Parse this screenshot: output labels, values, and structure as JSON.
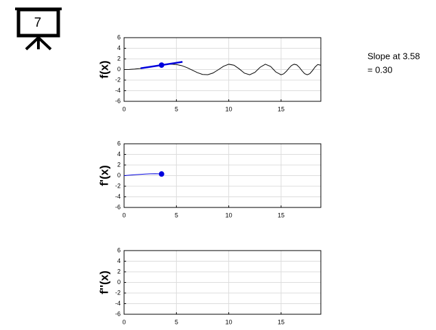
{
  "icon": {
    "label": "7"
  },
  "annotation": {
    "lines": [
      "Slope at 3.58",
      "= 0.30"
    ]
  },
  "chart_data": [
    {
      "type": "line",
      "ylabel": "f(x)",
      "xlim": [
        0,
        18.8
      ],
      "ylim": [
        -6,
        6
      ],
      "xticks": [
        0,
        5,
        10,
        15
      ],
      "yticks": [
        -6,
        -4,
        -2,
        0,
        2,
        4,
        6
      ],
      "grid": true,
      "series": [
        {
          "color": "#000000",
          "style": "line",
          "width": 1,
          "x": [
            0,
            0.5,
            1,
            1.5,
            2,
            2.5,
            3,
            3.5,
            4,
            4.5,
            5,
            5.5,
            6,
            6.5,
            7,
            7.5,
            8,
            8.5,
            9,
            9.5,
            10,
            10.5,
            11,
            11.5,
            12,
            12.5,
            13,
            13.5,
            14,
            14.5,
            15,
            15.25,
            15.5,
            15.75,
            16,
            16.25,
            16.5,
            16.75,
            17,
            17.25,
            17.5,
            17.75,
            18,
            18.25,
            18.5,
            18.8
          ],
          "values": [
            0,
            0.02,
            0.08,
            0.17,
            0.3,
            0.46,
            0.64,
            0.81,
            0.94,
            1.0,
            0.94,
            0.73,
            0.36,
            -0.11,
            -0.59,
            -0.93,
            -0.98,
            -0.66,
            -0.05,
            0.61,
            0.99,
            0.81,
            0.12,
            -0.69,
            -0.99,
            -0.54,
            0.42,
            0.99,
            0.58,
            -0.47,
            -0.99,
            -0.82,
            -0.36,
            0.23,
            0.75,
            0.99,
            0.87,
            0.4,
            -0.24,
            -0.78,
            -1.0,
            -0.78,
            -0.21,
            0.47,
            0.93,
            0.81
          ]
        },
        {
          "color": "#0000dd",
          "style": "line",
          "width": 2.5,
          "x": [
            1.58,
            5.58
          ],
          "values": [
            0.23,
            1.43
          ]
        },
        {
          "color": "#0000dd",
          "style": "marker",
          "x": [
            3.58
          ],
          "values": [
            0.83
          ]
        }
      ]
    },
    {
      "type": "line",
      "ylabel": "f'(x)",
      "xlim": [
        0,
        18.8
      ],
      "ylim": [
        -6,
        6
      ],
      "xticks": [
        0,
        5,
        10,
        15
      ],
      "yticks": [
        -6,
        -4,
        -2,
        0,
        2,
        4,
        6
      ],
      "grid": true,
      "series": [
        {
          "color": "#0000dd",
          "style": "line",
          "width": 1,
          "x": [
            0,
            0.5,
            1,
            1.5,
            2,
            2.5,
            3,
            3.5,
            3.58
          ],
          "values": [
            0,
            0.077,
            0.154,
            0.227,
            0.29,
            0.34,
            0.36,
            0.32,
            0.3
          ]
        },
        {
          "color": "#0000dd",
          "style": "marker",
          "x": [
            3.58
          ],
          "values": [
            0.3
          ]
        }
      ]
    },
    {
      "type": "line",
      "ylabel": "f''(x)",
      "xlim": [
        0,
        18.8
      ],
      "ylim": [
        -6,
        6
      ],
      "xticks": [
        0,
        5,
        10,
        15
      ],
      "yticks": [
        -6,
        -4,
        -2,
        0,
        2,
        4,
        6
      ],
      "grid": true,
      "series": []
    }
  ]
}
